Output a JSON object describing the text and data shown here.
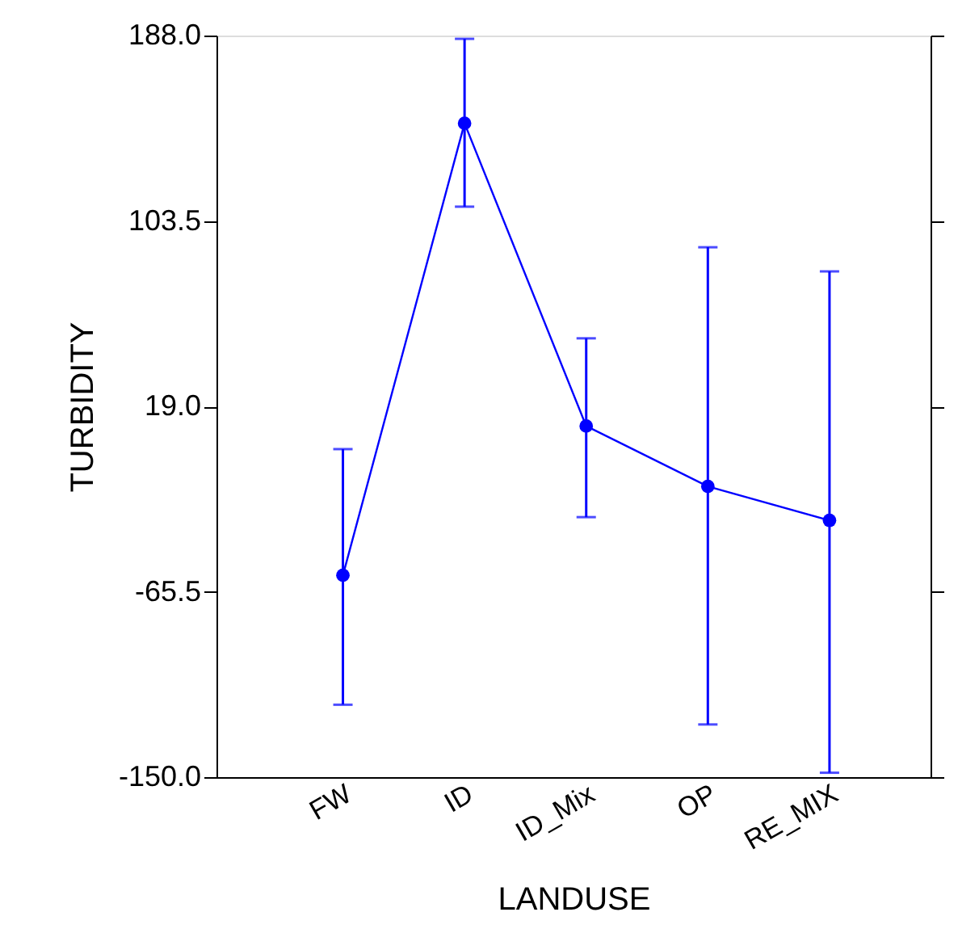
{
  "chart_data": {
    "type": "line",
    "xlabel": "LANDUSE",
    "ylabel": "TURBIDITY",
    "categories": [
      "FW",
      "ID",
      "ID_Mix",
      "OP",
      "RE_MIX"
    ],
    "series": [
      {
        "color": "#0000ff",
        "values": [
          -58,
          148,
          10,
          -17.5,
          -33
        ],
        "errors": [
          [
            -117,
            -0.5
          ],
          [
            110,
            186.5
          ],
          [
            -31.5,
            50
          ],
          [
            -126,
            91.5
          ],
          [
            -148,
            80.5
          ]
        ]
      }
    ],
    "ylim": [
      -150,
      188
    ],
    "yticks": [
      {
        "value": -150,
        "label": "-150.0"
      },
      {
        "value": -65.5,
        "label": "-65.5"
      },
      {
        "value": 19,
        "label": "19.0"
      },
      {
        "value": 103.5,
        "label": "103.5"
      },
      {
        "value": 188,
        "label": "188.0"
      }
    ],
    "marker": "circle",
    "line_style": "solid",
    "grid": false
  }
}
